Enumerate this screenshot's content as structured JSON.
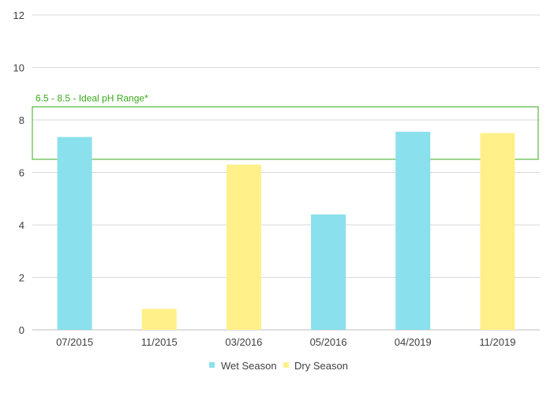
{
  "chart_data": {
    "type": "bar",
    "categories": [
      "07/2015",
      "11/2015",
      "03/2016",
      "05/2016",
      "04/2019",
      "11/2019"
    ],
    "values": [
      7.35,
      0.8,
      6.3,
      4.4,
      7.55,
      7.5
    ],
    "bar_series": [
      "Wet Season",
      "Dry Season",
      "Dry Season",
      "Wet Season",
      "Wet Season",
      "Dry Season"
    ],
    "series": [
      {
        "name": "Wet Season",
        "color": "#8ae0ec"
      },
      {
        "name": "Dry Season",
        "color": "#fff08a"
      }
    ],
    "ylim": [
      0,
      12
    ],
    "yticks": [
      0,
      2,
      4,
      6,
      8,
      10,
      12
    ],
    "grid": true,
    "legend": "bottom",
    "annotation": {
      "label": "6.5 - 8.5 - Ideal pH Range*",
      "y_min": 6.5,
      "y_max": 8.5,
      "color": "#3aaa1c"
    }
  }
}
